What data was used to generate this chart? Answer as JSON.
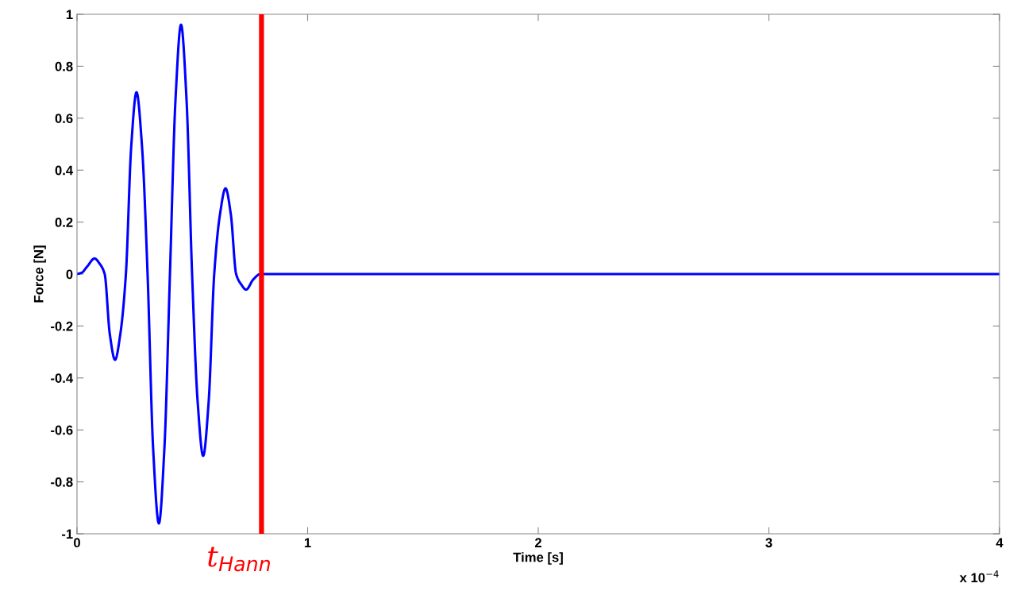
{
  "chart_data": {
    "type": "line",
    "xlabel": "Time [s]",
    "ylabel": "Force [N]",
    "x": [
      0,
      0.02,
      0.045,
      0.076,
      0.098,
      0.12,
      0.142,
      0.165,
      0.188,
      0.212,
      0.235,
      0.258,
      0.282,
      0.306,
      0.33,
      0.355,
      0.379,
      0.403,
      0.427,
      0.451,
      0.475,
      0.499,
      0.523,
      0.547,
      0.571,
      0.595,
      0.62,
      0.644,
      0.667,
      0.69,
      0.712,
      0.733,
      0.765,
      0.795,
      4
    ],
    "series": [
      {
        "color": "#0000ff",
        "values": [
          0,
          0.005,
          0.03,
          0.06,
          0.04,
          0,
          -0.23,
          -0.33,
          -0.23,
          0,
          0.49,
          0.7,
          0.49,
          0,
          -0.67,
          -0.96,
          -0.67,
          0,
          0.67,
          0.96,
          0.67,
          0,
          -0.49,
          -0.7,
          -0.49,
          0,
          0.23,
          0.33,
          0.23,
          0,
          -0.04,
          -0.06,
          -0.02,
          0,
          0
        ]
      }
    ],
    "xlim": [
      0,
      4
    ],
    "xticks": [
      0,
      1,
      2,
      3,
      4
    ],
    "ylim": [
      -1,
      1
    ],
    "yticks": [
      -1,
      -0.8,
      -0.6,
      -0.4,
      -0.2,
      0,
      0.2,
      0.4,
      0.6,
      0.8,
      1
    ],
    "ref_lines": [
      {
        "axis": "x",
        "value": 0.8,
        "label": "t$_{Hann}$",
        "color": "#ff0000"
      }
    ],
    "annotations": [
      "x 10$^{−4}$"
    ],
    "grid": false,
    "legend": false,
    "marker": "none",
    "line_style": "solid"
  }
}
